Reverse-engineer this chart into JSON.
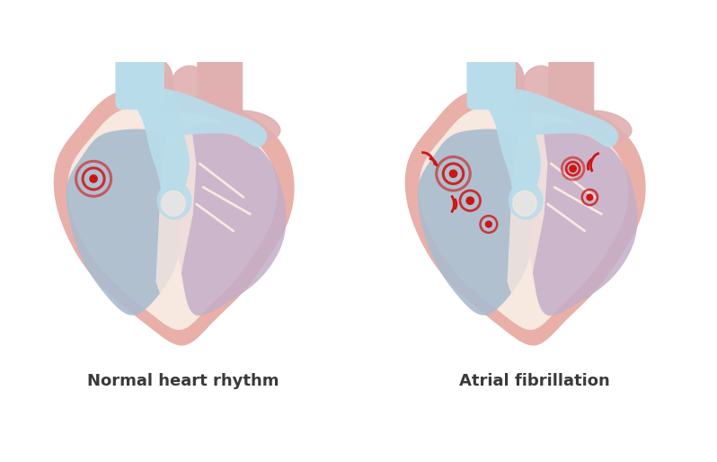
{
  "title_left": "Normal heart rhythm",
  "title_right": "Atrial fibrillation",
  "title_fontsize": 13,
  "title_color": "#3a3a3a",
  "bg_color": "#ffffff",
  "outer_pink": "#e8b0a8",
  "inner_cream": "#f7e8e0",
  "blue_vessel": "#b8dcea",
  "pink_top": "#e0b0b0",
  "right_ventricle_blue": "#aabcce",
  "left_ventricle_mauve": "#c4aec8",
  "right_atrium_pink": "#d9a8a8",
  "left_atrium_blue": "#aac8de",
  "septum_line": "#e0c8c0",
  "cream_divider": "#f2e0d8",
  "signal_red": "#cc1515"
}
